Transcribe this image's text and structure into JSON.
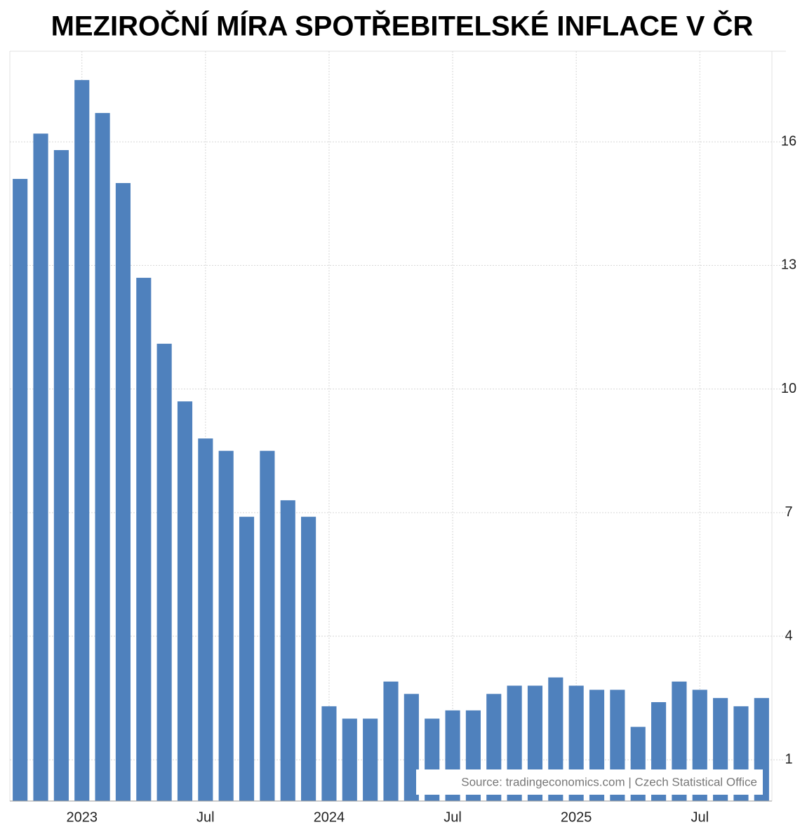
{
  "chart_data": {
    "type": "bar",
    "title": "MEZIROČNÍ MÍRA SPOTŘEBITELSKÉ INFLACE V ČR",
    "annotation": "Source: tradingeconomics.com | Czech Statistical Office",
    "color": "#4f81bd",
    "categories": [
      null,
      null,
      null,
      "2023",
      null,
      null,
      null,
      null,
      null,
      "Jul",
      null,
      null,
      null,
      null,
      null,
      "2024",
      null,
      null,
      null,
      null,
      null,
      "Jul",
      null,
      null,
      null,
      null,
      null,
      "2025",
      null,
      null,
      null,
      null,
      null,
      "Jul",
      null,
      null,
      null
    ],
    "values": [
      15.1,
      16.2,
      15.8,
      17.5,
      16.7,
      15.0,
      12.7,
      11.1,
      9.7,
      8.8,
      8.5,
      6.9,
      8.5,
      7.3,
      6.9,
      2.3,
      2.0,
      2.0,
      2.9,
      2.6,
      2.0,
      2.2,
      2.2,
      2.6,
      2.8,
      2.8,
      3.0,
      2.8,
      2.7,
      2.7,
      1.8,
      2.4,
      2.9,
      2.7,
      2.5,
      2.3,
      2.5
    ],
    "ylim": [
      0,
      18.2
    ],
    "yticks": [
      1,
      4,
      7,
      10,
      13,
      16
    ],
    "grid": true
  }
}
